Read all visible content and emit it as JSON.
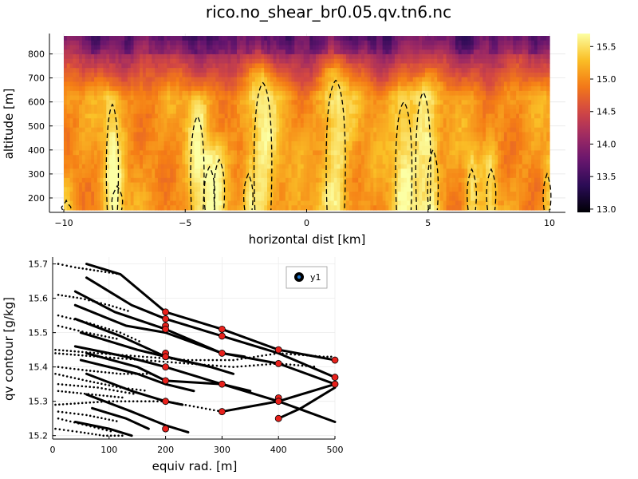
{
  "title": "rico.no_shear_br0.05.qv.tn6.nc",
  "chart_data": [
    {
      "type": "heatmap",
      "xlabel": "horizontal dist [km]",
      "ylabel": "altitude [m]",
      "xlim": [
        -10,
        10
      ],
      "ylim": [
        150,
        875
      ],
      "xticks": [
        -10,
        -5,
        0,
        5,
        10
      ],
      "yticks": [
        200,
        300,
        400,
        500,
        600,
        700,
        800
      ],
      "colorbar": {
        "colormap": "inferno",
        "range": [
          12.95,
          15.7
        ],
        "ticks": [
          13.0,
          13.5,
          14.0,
          14.5,
          15.0,
          15.5
        ],
        "tick_labels": [
          "13.0",
          "13.5",
          "14.0",
          "14.5",
          "15.0",
          "15.5"
        ]
      },
      "grid": true,
      "annotations": "dashed black contour lines outlining moist plumes",
      "plumes": [
        {
          "x": -9.9,
          "top": 190,
          "width": 0.25,
          "strength": 0.6
        },
        {
          "x": -8.0,
          "top": 590,
          "width": 0.35,
          "strength": 0.8
        },
        {
          "x": -7.8,
          "top": 250,
          "width": 0.3,
          "strength": 0.6
        },
        {
          "x": -4.5,
          "top": 540,
          "width": 0.4,
          "strength": 0.9
        },
        {
          "x": -4.0,
          "top": 330,
          "width": 0.3,
          "strength": 0.7
        },
        {
          "x": -3.6,
          "top": 360,
          "width": 0.3,
          "strength": 0.7
        },
        {
          "x": -2.4,
          "top": 300,
          "width": 0.25,
          "strength": 0.6
        },
        {
          "x": -1.8,
          "top": 680,
          "width": 0.55,
          "strength": 1.0
        },
        {
          "x": 1.2,
          "top": 690,
          "width": 0.6,
          "strength": 1.0
        },
        {
          "x": 4.0,
          "top": 600,
          "width": 0.5,
          "strength": 0.9
        },
        {
          "x": 4.8,
          "top": 640,
          "width": 0.45,
          "strength": 0.9
        },
        {
          "x": 5.2,
          "top": 400,
          "width": 0.3,
          "strength": 0.7
        },
        {
          "x": 6.8,
          "top": 320,
          "width": 0.25,
          "strength": 0.6
        },
        {
          "x": 7.6,
          "top": 320,
          "width": 0.25,
          "strength": 0.6
        },
        {
          "x": 9.9,
          "top": 300,
          "width": 0.2,
          "strength": 0.5
        }
      ]
    },
    {
      "type": "scatter",
      "xlabel": "equiv rad. [m]",
      "ylabel": "qv contour [g/kg]",
      "xlim": [
        0,
        500
      ],
      "ylim": [
        15.19,
        15.72
      ],
      "xticks": [
        0,
        100,
        200,
        300,
        400,
        500
      ],
      "yticks": [
        15.2,
        15.3,
        15.4,
        15.5,
        15.6,
        15.7
      ],
      "ytick_labels": [
        "15.2",
        "15.3",
        "15.4",
        "15.5",
        "15.6",
        "15.7"
      ],
      "grid": true,
      "legend": {
        "position": "top-right",
        "entries": [
          "y1"
        ]
      },
      "curves": [
        [
          [
            60,
            15.7
          ],
          [
            120,
            15.67
          ],
          [
            200,
            15.56
          ],
          [
            300,
            15.51
          ],
          [
            400,
            15.45
          ],
          [
            500,
            15.42
          ]
        ],
        [
          [
            60,
            15.66
          ],
          [
            140,
            15.58
          ],
          [
            200,
            15.54
          ],
          [
            300,
            15.49
          ],
          [
            400,
            15.44
          ],
          [
            500,
            15.37
          ]
        ],
        [
          [
            40,
            15.62
          ],
          [
            110,
            15.56
          ],
          [
            200,
            15.51
          ],
          [
            300,
            15.44
          ],
          [
            400,
            15.41
          ],
          [
            500,
            15.35
          ]
        ],
        [
          [
            40,
            15.58
          ],
          [
            130,
            15.52
          ],
          [
            200,
            15.5
          ],
          [
            300,
            15.44
          ],
          [
            340,
            15.43
          ]
        ],
        [
          [
            40,
            15.54
          ],
          [
            120,
            15.49
          ],
          [
            200,
            15.43
          ],
          [
            280,
            15.4
          ],
          [
            320,
            15.38
          ]
        ],
        [
          [
            50,
            15.5
          ],
          [
            150,
            15.45
          ],
          [
            200,
            15.43
          ],
          [
            280,
            15.4
          ]
        ],
        [
          [
            40,
            15.46
          ],
          [
            130,
            15.43
          ],
          [
            200,
            15.4
          ],
          [
            260,
            15.37
          ],
          [
            300,
            15.35
          ],
          [
            400,
            15.3
          ],
          [
            500,
            15.24
          ]
        ],
        [
          [
            60,
            15.44
          ],
          [
            150,
            15.4
          ],
          [
            200,
            15.36
          ],
          [
            300,
            15.35
          ],
          [
            350,
            15.33
          ]
        ],
        [
          [
            50,
            15.42
          ],
          [
            150,
            15.38
          ],
          [
            200,
            15.35
          ],
          [
            250,
            15.33
          ]
        ],
        [
          [
            60,
            15.38
          ],
          [
            140,
            15.33
          ],
          [
            200,
            15.3
          ],
          [
            230,
            15.29
          ]
        ],
        [
          [
            60,
            15.32
          ],
          [
            140,
            15.27
          ],
          [
            200,
            15.23
          ],
          [
            240,
            15.21
          ]
        ],
        [
          [
            70,
            15.28
          ],
          [
            130,
            15.25
          ],
          [
            170,
            15.22
          ]
        ],
        [
          [
            40,
            15.24
          ],
          [
            100,
            15.22
          ],
          [
            140,
            15.2
          ]
        ],
        [
          [
            300,
            15.27
          ],
          [
            400,
            15.3
          ],
          [
            500,
            15.35
          ]
        ],
        [
          [
            400,
            15.25
          ],
          [
            440,
            15.28
          ],
          [
            500,
            15.34
          ]
        ]
      ],
      "dotted_series": [
        [
          [
            10,
            15.7
          ],
          [
            40,
            15.69
          ],
          [
            80,
            15.68
          ],
          [
            120,
            15.67
          ]
        ],
        [
          [
            10,
            15.61
          ],
          [
            50,
            15.6
          ],
          [
            100,
            15.58
          ],
          [
            140,
            15.56
          ]
        ],
        [
          [
            10,
            15.55
          ],
          [
            60,
            15.53
          ],
          [
            120,
            15.5
          ],
          [
            160,
            15.47
          ]
        ],
        [
          [
            10,
            15.52
          ],
          [
            60,
            15.5
          ],
          [
            120,
            15.48
          ]
        ],
        [
          [
            5,
            15.45
          ],
          [
            80,
            15.44
          ],
          [
            160,
            15.43
          ],
          [
            240,
            15.42
          ],
          [
            320,
            15.42
          ],
          [
            400,
            15.44
          ],
          [
            480,
            15.43
          ],
          [
            500,
            15.43
          ]
        ],
        [
          [
            5,
            15.44
          ],
          [
            80,
            15.43
          ],
          [
            160,
            15.42
          ],
          [
            240,
            15.41
          ],
          [
            320,
            15.4
          ],
          [
            400,
            15.41
          ],
          [
            470,
            15.4
          ]
        ],
        [
          [
            10,
            15.4
          ],
          [
            60,
            15.39
          ],
          [
            120,
            15.38
          ],
          [
            180,
            15.38
          ]
        ],
        [
          [
            5,
            15.38
          ],
          [
            60,
            15.36
          ],
          [
            120,
            15.34
          ],
          [
            170,
            15.33
          ]
        ],
        [
          [
            10,
            15.35
          ],
          [
            80,
            15.34
          ],
          [
            150,
            15.32
          ]
        ],
        [
          [
            10,
            15.33
          ],
          [
            70,
            15.32
          ],
          [
            130,
            15.31
          ]
        ],
        [
          [
            5,
            15.29
          ],
          [
            100,
            15.3
          ],
          [
            200,
            15.3
          ],
          [
            300,
            15.27
          ],
          [
            400,
            15.3
          ],
          [
            500,
            15.35
          ]
        ],
        [
          [
            10,
            15.27
          ],
          [
            60,
            15.26
          ],
          [
            120,
            15.24
          ]
        ],
        [
          [
            10,
            15.25
          ],
          [
            60,
            15.23
          ],
          [
            110,
            15.21
          ]
        ],
        [
          [
            5,
            15.22
          ],
          [
            50,
            15.21
          ],
          [
            90,
            15.2
          ],
          [
            130,
            15.2
          ]
        ]
      ],
      "markers": [
        [
          200,
          15.56
        ],
        [
          200,
          15.54
        ],
        [
          200,
          15.52
        ],
        [
          200,
          15.51
        ],
        [
          200,
          15.44
        ],
        [
          200,
          15.43
        ],
        [
          200,
          15.4
        ],
        [
          200,
          15.36
        ],
        [
          200,
          15.3
        ],
        [
          200,
          15.22
        ],
        [
          300,
          15.51
        ],
        [
          300,
          15.49
        ],
        [
          300,
          15.44
        ],
        [
          300,
          15.35
        ],
        [
          300,
          15.27
        ],
        [
          400,
          15.45
        ],
        [
          400,
          15.41
        ],
        [
          400,
          15.31
        ],
        [
          400,
          15.3
        ],
        [
          400,
          15.25
        ],
        [
          500,
          15.42
        ],
        [
          500,
          15.37
        ],
        [
          500,
          15.35
        ]
      ]
    }
  ]
}
